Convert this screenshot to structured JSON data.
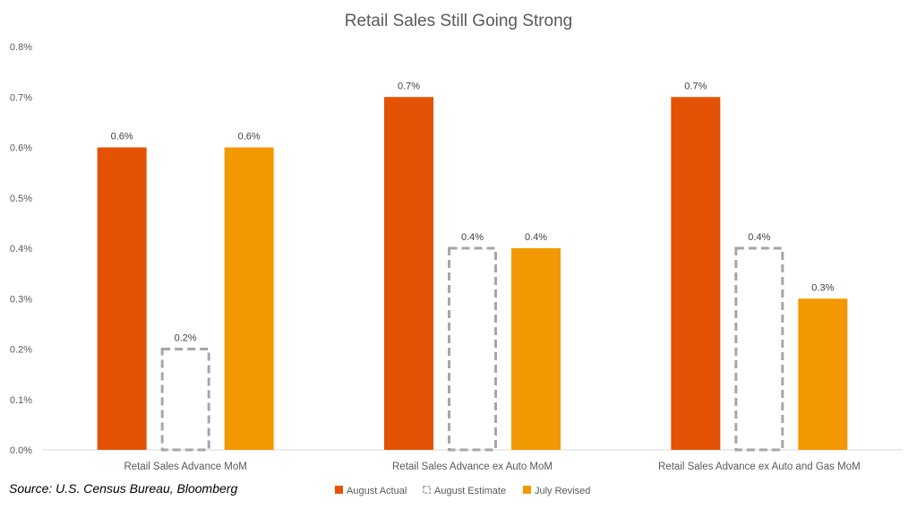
{
  "chart_data": {
    "type": "bar",
    "title": "Retail Sales Still Going Strong",
    "categories": [
      "Retail Sales Advance MoM",
      "Retail Sales Advance ex Auto MoM",
      "Retail Sales Advance ex Auto and Gas MoM"
    ],
    "series": [
      {
        "name": "August Actual",
        "values": [
          0.6,
          0.7,
          0.7
        ],
        "labels": [
          "0.6%",
          "0.7%",
          "0.7%"
        ],
        "color": "#E35205",
        "style": "solid"
      },
      {
        "name": "August Estimate",
        "values": [
          0.2,
          0.4,
          0.4
        ],
        "labels": [
          "0.2%",
          "0.4%",
          "0.4%"
        ],
        "color": "#A6A6A6",
        "style": "dashed-outline"
      },
      {
        "name": "July Revised",
        "values": [
          0.6,
          0.4,
          0.3
        ],
        "labels": [
          "0.6%",
          "0.4%",
          "0.3%"
        ],
        "color": "#F29800",
        "style": "solid"
      }
    ],
    "ylim": [
      0,
      0.8
    ],
    "yticks": [
      "0.0%",
      "0.1%",
      "0.2%",
      "0.3%",
      "0.4%",
      "0.5%",
      "0.6%",
      "0.7%",
      "0.8%"
    ],
    "xlabel": "",
    "ylabel": "",
    "grid": false,
    "legend": "bottom-center"
  },
  "source_note": "Source: U.S. Census Bureau, Bloomberg"
}
